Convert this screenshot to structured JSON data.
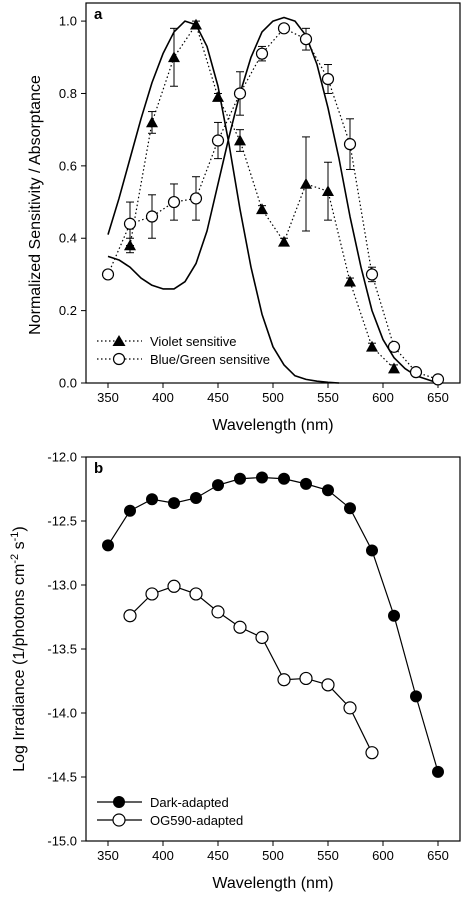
{
  "chart_data": [
    {
      "type": "line",
      "panel_label": "a",
      "xlabel": "Wavelength (nm)",
      "ylabel": "Normalized Sensitivity / Absorptance",
      "xlim": [
        330,
        670
      ],
      "ylim": [
        0.0,
        1.05
      ],
      "x_ticks": [
        350,
        400,
        450,
        500,
        550,
        600,
        650
      ],
      "y_ticks": [
        0.0,
        0.2,
        0.4,
        0.6,
        0.8,
        1.0
      ],
      "y_tick_labels": [
        "0.0",
        "0.2",
        "0.4",
        "0.6",
        "0.8",
        "1.0"
      ],
      "grid": false,
      "legend_position": "bottom-left",
      "series": [
        {
          "name": "Violet sensitive",
          "style": "dotted",
          "marker": "filled-triangle",
          "x": [
            370,
            390,
            410,
            430,
            450,
            470,
            490,
            510,
            530,
            550,
            570,
            590,
            610
          ],
          "y": [
            0.38,
            0.72,
            0.9,
            0.99,
            0.79,
            0.67,
            0.48,
            0.39,
            0.55,
            0.53,
            0.28,
            0.1,
            0.04
          ],
          "err": [
            0.02,
            0.03,
            0.08,
            0.01,
            0.01,
            0.03,
            0.01,
            0.01,
            0.13,
            0.08,
            0.01,
            0.01,
            0.01
          ]
        },
        {
          "name": "Blue/Green sensitive",
          "style": "dotted",
          "marker": "open-circle",
          "x": [
            350,
            370,
            390,
            410,
            430,
            450,
            470,
            490,
            510,
            530,
            550,
            570,
            590,
            610,
            630,
            650
          ],
          "y": [
            0.3,
            0.44,
            0.46,
            0.5,
            0.51,
            0.67,
            0.8,
            0.91,
            0.98,
            0.95,
            0.84,
            0.66,
            0.3,
            0.1,
            0.03,
            0.01
          ],
          "err": [
            0.01,
            0.06,
            0.06,
            0.05,
            0.06,
            0.05,
            0.06,
            0.02,
            0.01,
            0.03,
            0.04,
            0.07,
            0.02,
            0.01,
            0.01,
            0.01
          ]
        },
        {
          "style": "solid",
          "marker": "none",
          "x": [
            350,
            360,
            370,
            380,
            390,
            400,
            410,
            420,
            430,
            440,
            450,
            460,
            470,
            480,
            490,
            500,
            510,
            520,
            530,
            540,
            550,
            560
          ],
          "y": [
            0.41,
            0.51,
            0.62,
            0.73,
            0.83,
            0.91,
            0.97,
            1.0,
            0.99,
            0.93,
            0.82,
            0.66,
            0.48,
            0.32,
            0.19,
            0.1,
            0.05,
            0.02,
            0.01,
            0.005,
            0.002,
            0.0
          ]
        },
        {
          "style": "solid",
          "marker": "none",
          "x": [
            350,
            360,
            370,
            380,
            390,
            400,
            410,
            420,
            430,
            440,
            450,
            460,
            470,
            480,
            490,
            500,
            510,
            520,
            530,
            540,
            550,
            560,
            570,
            580,
            590,
            600,
            610,
            620,
            630,
            640,
            650
          ],
          "y": [
            0.35,
            0.34,
            0.32,
            0.29,
            0.27,
            0.26,
            0.26,
            0.28,
            0.33,
            0.42,
            0.55,
            0.68,
            0.8,
            0.9,
            0.97,
            1.0,
            1.01,
            1.0,
            0.96,
            0.88,
            0.76,
            0.62,
            0.46,
            0.32,
            0.2,
            0.12,
            0.07,
            0.04,
            0.02,
            0.01,
            0.0
          ]
        }
      ],
      "legend": [
        {
          "label": "Violet sensitive",
          "marker": "filled-triangle"
        },
        {
          "label": "Blue/Green sensitive",
          "marker": "open-circle"
        }
      ]
    },
    {
      "type": "line",
      "panel_label": "b",
      "xlabel": "Wavelength (nm)",
      "ylabel_main": "Log Irradiance (1/photons cm",
      "ylabel_sup1": "-2",
      "ylabel_mid": " s",
      "ylabel_sup2": "-1",
      "ylabel_end": ")",
      "xlim": [
        330,
        670
      ],
      "ylim": [
        -15.0,
        -12.0
      ],
      "x_ticks": [
        350,
        400,
        450,
        500,
        550,
        600,
        650
      ],
      "y_ticks": [
        -15.0,
        -14.5,
        -14.0,
        -13.5,
        -13.0,
        -12.5,
        -12.0
      ],
      "y_tick_labels": [
        "-15.0",
        "-14.5",
        "-14.0",
        "-13.5",
        "-13.0",
        "-12.5",
        "-12.0"
      ],
      "grid": false,
      "legend_position": "bottom-left",
      "series": [
        {
          "name": "Dark-adapted",
          "style": "solid",
          "marker": "filled-circle",
          "x": [
            350,
            370,
            390,
            410,
            430,
            450,
            470,
            490,
            510,
            530,
            550,
            570,
            590,
            610,
            630,
            650
          ],
          "y": [
            -12.69,
            -12.42,
            -12.33,
            -12.36,
            -12.32,
            -12.22,
            -12.17,
            -12.16,
            -12.17,
            -12.21,
            -12.26,
            -12.4,
            -12.73,
            -13.24,
            -13.87,
            -14.46
          ]
        },
        {
          "name": "OG590-adapted",
          "style": "solid",
          "marker": "open-circle",
          "x": [
            370,
            390,
            410,
            430,
            450,
            470,
            490,
            510,
            530,
            550,
            570,
            590
          ],
          "y": [
            -13.24,
            -13.07,
            -13.01,
            -13.07,
            -13.21,
            -13.33,
            -13.41,
            -13.74,
            -13.73,
            -13.78,
            -13.96,
            -14.31
          ]
        }
      ],
      "legend": [
        {
          "label": "Dark-adapted",
          "marker": "filled-circle"
        },
        {
          "label": "OG590-adapted",
          "marker": "open-circle"
        }
      ]
    }
  ]
}
